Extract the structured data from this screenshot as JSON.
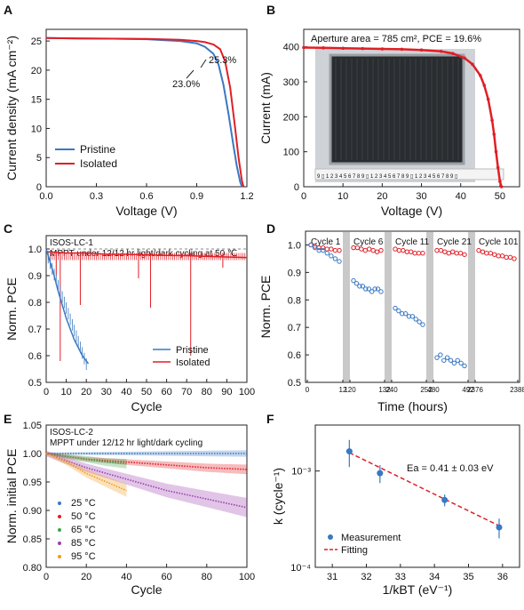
{
  "chart_data": [
    {
      "panel": "A",
      "type": "line",
      "xlabel": "Voltage (V)",
      "ylabel": "Current density (mA cm⁻²)",
      "xlim": [
        0,
        1.2
      ],
      "ylim": [
        0,
        27
      ],
      "xticks": [
        "0.0",
        "0.3",
        "0.6",
        "0.9",
        "1.2"
      ],
      "yticks": [
        "0",
        "5",
        "10",
        "15",
        "20",
        "25"
      ],
      "legend": "bottom-left",
      "series": [
        {
          "name": "Pristine",
          "color": "#3a78c2",
          "x": [
            0,
            0.2,
            0.4,
            0.6,
            0.8,
            0.9,
            0.95,
            1.0,
            1.03,
            1.06,
            1.09,
            1.12,
            1.14,
            1.16,
            1.17
          ],
          "y": [
            25.5,
            25.45,
            25.4,
            25.3,
            25.0,
            24.6,
            24.0,
            22.8,
            21.0,
            17.5,
            12.5,
            7.0,
            3.5,
            0.8,
            0
          ]
        },
        {
          "name": "Isolated",
          "color": "#e01f26",
          "x": [
            0,
            0.2,
            0.4,
            0.6,
            0.8,
            0.9,
            0.95,
            1.0,
            1.04,
            1.07,
            1.1,
            1.13,
            1.15,
            1.17,
            1.18
          ],
          "y": [
            25.5,
            25.45,
            25.4,
            25.35,
            25.2,
            25.0,
            24.8,
            24.4,
            23.6,
            21.5,
            17.0,
            10.0,
            5.0,
            1.0,
            0
          ]
        }
      ],
      "annotations": [
        "25.3%",
        "23.0%"
      ]
    },
    {
      "panel": "B",
      "type": "line",
      "xlabel": "Voltage (V)",
      "ylabel": "Current (mA)",
      "xlim": [
        0,
        55
      ],
      "ylim": [
        0,
        450
      ],
      "xticks": [
        "0",
        "10",
        "20",
        "30",
        "40",
        "50"
      ],
      "yticks": [
        "0",
        "100",
        "200",
        "300",
        "400"
      ],
      "annotation": "Aperture area = 785 cm², PCE = 19.6%",
      "series": [
        {
          "name": "",
          "color": "#e01f26",
          "x": [
            0,
            5,
            10,
            15,
            20,
            25,
            30,
            35,
            38,
            41,
            43,
            45,
            46,
            47,
            48,
            48.5,
            49,
            49.5,
            50,
            50.4
          ],
          "y": [
            398,
            397,
            396,
            395,
            394,
            393,
            391,
            387,
            381,
            368,
            350,
            318,
            290,
            250,
            190,
            150,
            100,
            55,
            15,
            0
          ]
        }
      ],
      "photo_strip": "9 ▯ 1 2 3 4 5 6 7 8 9 ▯ 1 2 3 4 5 6 7 8 9 ▯ 1 2 3 4 5 6 7 8 9 ▯"
    },
    {
      "panel": "C",
      "type": "line",
      "xlabel": "Cycle",
      "ylabel": "Norm. PCE",
      "xlim": [
        0,
        100
      ],
      "ylim": [
        0.5,
        1.05
      ],
      "xticks": [
        "0",
        "10",
        "20",
        "30",
        "40",
        "50",
        "60",
        "70",
        "80",
        "90",
        "100"
      ],
      "yticks": [
        "0.5",
        "0.6",
        "0.7",
        "0.8",
        "0.9",
        "1.0"
      ],
      "title_lines": [
        "ISOS-LC-1",
        "MPPT under 12/12 hr light/dark cycling at 50 ℃"
      ],
      "legend": "bottom-right",
      "series": [
        {
          "name": "Pristine",
          "color": "#3a78c2",
          "x": [
            0,
            2,
            4,
            6,
            8,
            10,
            12,
            14,
            16,
            18,
            20,
            21
          ],
          "y": [
            1.0,
            0.95,
            0.9,
            0.84,
            0.79,
            0.74,
            0.7,
            0.66,
            0.63,
            0.6,
            0.58,
            0.57
          ]
        },
        {
          "name": "Isolated",
          "color": "#e01f26",
          "x": [
            0,
            10,
            20,
            30,
            40,
            50,
            60,
            70,
            80,
            90,
            100
          ],
          "y": [
            0.99,
            0.985,
            0.985,
            0.98,
            0.98,
            0.978,
            0.976,
            0.975,
            0.972,
            0.97,
            0.968
          ],
          "dips": [
            [
              5,
              0.9
            ],
            [
              7,
              0.58
            ],
            [
              17,
              0.79
            ],
            [
              46,
              0.89
            ],
            [
              52,
              0.78
            ],
            [
              72,
              0.6
            ],
            [
              88,
              0.93
            ]
          ]
        }
      ]
    },
    {
      "panel": "D",
      "type": "scatter",
      "xlabel": "Time (hours)",
      "ylabel": "Norm. PCE",
      "ylim": [
        0.5,
        1.05
      ],
      "yticks": [
        "0.5",
        "0.6",
        "0.7",
        "0.8",
        "0.9",
        "1.0"
      ],
      "xticks": [
        "0",
        "12",
        "120",
        "132",
        "240",
        "252",
        "480",
        "492",
        "2376",
        "2388"
      ],
      "segments": [
        {
          "label": "Cycle 1",
          "start": 0,
          "end": 12,
          "blue": [
            1.0,
            0.99,
            0.98,
            0.98,
            0.97,
            0.96,
            0.95,
            0.94
          ],
          "red": [
            1.0,
            0.995,
            0.99,
            0.99,
            0.985,
            0.985,
            0.98,
            0.98
          ]
        },
        {
          "label": "Cycle 6",
          "start": 120,
          "end": 132,
          "blue": [
            0.87,
            0.86,
            0.85,
            0.85,
            0.84,
            0.84,
            0.83,
            0.84,
            0.84,
            0.83
          ],
          "red": [
            0.99,
            0.99,
            0.985,
            0.98,
            0.985,
            0.98,
            0.975,
            0.98
          ]
        },
        {
          "label": "Cycle 11",
          "start": 240,
          "end": 252,
          "blue": [
            0.77,
            0.76,
            0.75,
            0.75,
            0.74,
            0.74,
            0.73,
            0.72,
            0.71
          ],
          "red": [
            0.985,
            0.98,
            0.98,
            0.975,
            0.975,
            0.97,
            0.97,
            0.97
          ]
        },
        {
          "label": "Cycle 21",
          "start": 480,
          "end": 492,
          "blue": [
            0.59,
            0.6,
            0.58,
            0.59,
            0.58,
            0.57,
            0.58,
            0.57,
            0.56
          ],
          "red": [
            0.98,
            0.98,
            0.975,
            0.97,
            0.975,
            0.97,
            0.97,
            0.965
          ]
        },
        {
          "label": "Cycle 101",
          "start": 2376,
          "end": 2388,
          "blue": [],
          "red": [
            0.98,
            0.975,
            0.97,
            0.97,
            0.965,
            0.96,
            0.96,
            0.955,
            0.955,
            0.95
          ]
        }
      ]
    },
    {
      "panel": "E",
      "type": "line",
      "xlabel": "Cycle",
      "ylabel": "Norm. initial PCE",
      "xlim": [
        0,
        100
      ],
      "ylim": [
        0.8,
        1.05
      ],
      "xticks": [
        "0",
        "20",
        "40",
        "60",
        "80",
        "100"
      ],
      "yticks": [
        "0.80",
        "0.85",
        "0.90",
        "0.95",
        "1.00",
        "1.05"
      ],
      "title_lines": [
        "ISOS-LC-2",
        "MPPT under 12/12 hr light/dark cycling"
      ],
      "legend": "left",
      "series": [
        {
          "name": "25 °C",
          "color": "#3a78c2",
          "x": [
            0,
            20,
            40,
            60,
            80,
            100
          ],
          "y": [
            1.0,
            1.0,
            1.0,
            1.0,
            1.0,
            1.0
          ]
        },
        {
          "name": "50 °C",
          "color": "#e01f26",
          "x": [
            0,
            20,
            40,
            60,
            80,
            100
          ],
          "y": [
            1.0,
            0.99,
            0.985,
            0.98,
            0.975,
            0.972
          ]
        },
        {
          "name": "65 °C",
          "color": "#3aa54a",
          "x": [
            0,
            10,
            20,
            30,
            40
          ],
          "y": [
            1.0,
            0.995,
            0.99,
            0.985,
            0.982
          ]
        },
        {
          "name": "85 °C",
          "color": "#9b3fb0",
          "x": [
            0,
            20,
            40,
            60,
            80,
            100
          ],
          "y": [
            1.0,
            0.975,
            0.955,
            0.935,
            0.92,
            0.905
          ]
        },
        {
          "name": "95 °C",
          "color": "#f39a1f",
          "x": [
            0,
            10,
            20,
            30,
            40
          ],
          "y": [
            1.0,
            0.985,
            0.965,
            0.95,
            0.935
          ]
        }
      ]
    },
    {
      "panel": "F",
      "type": "scatter",
      "xlabel": "1/kBT (eV⁻¹)",
      "ylabel": "k (cycle⁻¹)",
      "xlim": [
        30.5,
        36.5
      ],
      "ylim_log": [
        0.0001,
        0.003
      ],
      "xticks": [
        "31",
        "32",
        "33",
        "34",
        "35",
        "36"
      ],
      "yticks": [
        "10⁻⁴",
        "10⁻³"
      ],
      "annotation": "Ea = 0.41 ± 0.03 eV",
      "legend": "bottom-left",
      "series": [
        {
          "name": "Measurement",
          "color": "#3a78c2",
          "x": [
            31.5,
            32.4,
            34.3,
            35.9
          ],
          "y": [
            0.0016,
            0.00095,
            0.0005,
            0.00026
          ],
          "err": [
            0.0005,
            0.0002,
            7e-05,
            6e-05
          ]
        },
        {
          "name": "Fitting",
          "color": "#e01f26",
          "x": [
            31.5,
            35.9
          ],
          "y": [
            0.00155,
            0.00027
          ]
        }
      ]
    }
  ]
}
